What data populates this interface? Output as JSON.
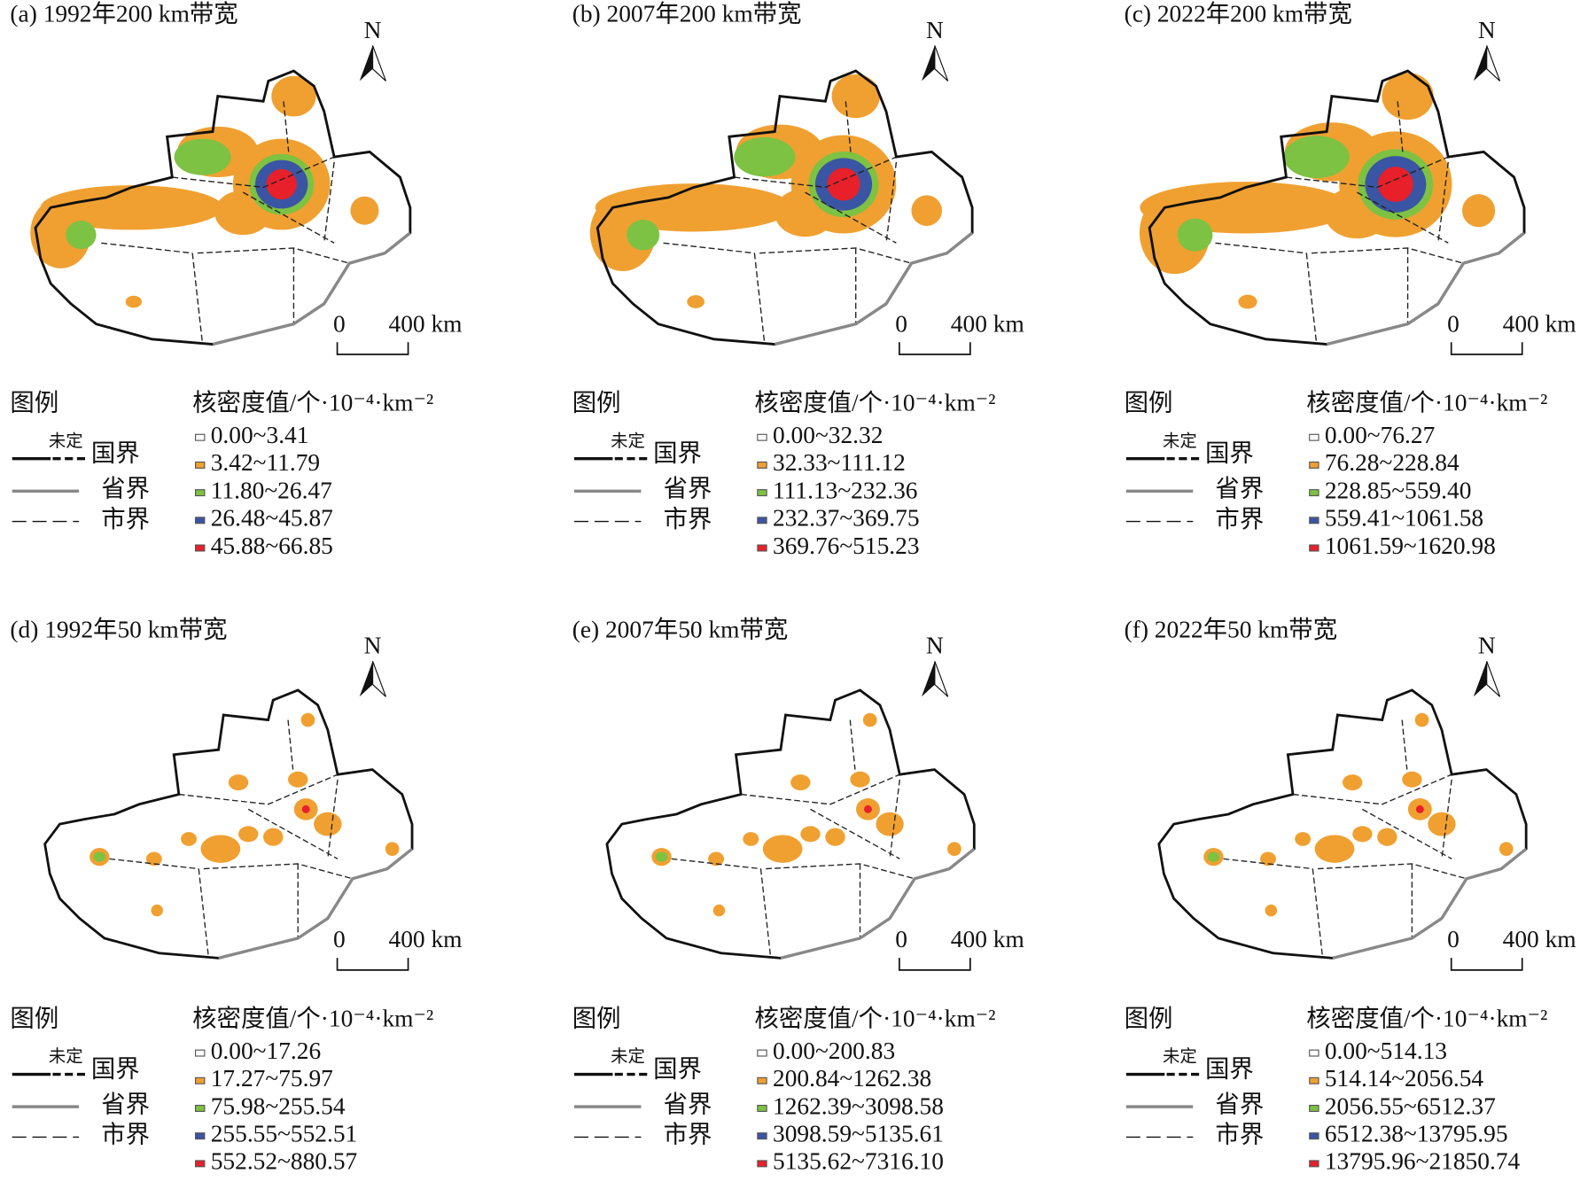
{
  "legend_common": {
    "legend_label": "图例",
    "undetermined": "未定",
    "national": "国界",
    "provincial": "省界",
    "municipal": "市界",
    "density_heading": "核密度值/个·10⁻⁴·km⁻²",
    "north": "N",
    "scale_zero": "0",
    "scale_length": "400 km",
    "colors": [
      "#ffffff",
      "#f0a030",
      "#7dc242",
      "#3a55a4",
      "#e8202a"
    ]
  },
  "panels": [
    {
      "title": "(a) 1992年200 km带宽",
      "classes": [
        "0.00~3.41",
        "3.42~11.79",
        "11.80~26.47",
        "26.48~45.87",
        "45.88~66.85"
      ]
    },
    {
      "title": "(b) 2007年200 km带宽",
      "classes": [
        "0.00~32.32",
        "32.33~111.12",
        "111.13~232.36",
        "232.37~369.75",
        "369.76~515.23"
      ]
    },
    {
      "title": "(c) 2022年200 km带宽",
      "classes": [
        "0.00~76.27",
        "76.28~228.84",
        "228.85~559.40",
        "559.41~1061.58",
        "1061.59~1620.98"
      ]
    },
    {
      "title": "(d) 1992年50 km带宽",
      "classes": [
        "0.00~17.26",
        "17.27~75.97",
        "75.98~255.54",
        "255.55~552.51",
        "552.52~880.57"
      ]
    },
    {
      "title": "(e) 2007年50 km带宽",
      "classes": [
        "0.00~200.83",
        "200.84~1262.38",
        "1262.39~3098.58",
        "3098.59~5135.61",
        "5135.62~7316.10"
      ]
    },
    {
      "title": "(f) 2022年50 km带宽",
      "classes": [
        "0.00~514.13",
        "514.14~2056.54",
        "2056.55~6512.37",
        "6512.38~13795.95",
        "13795.96~21850.74"
      ]
    }
  ]
}
